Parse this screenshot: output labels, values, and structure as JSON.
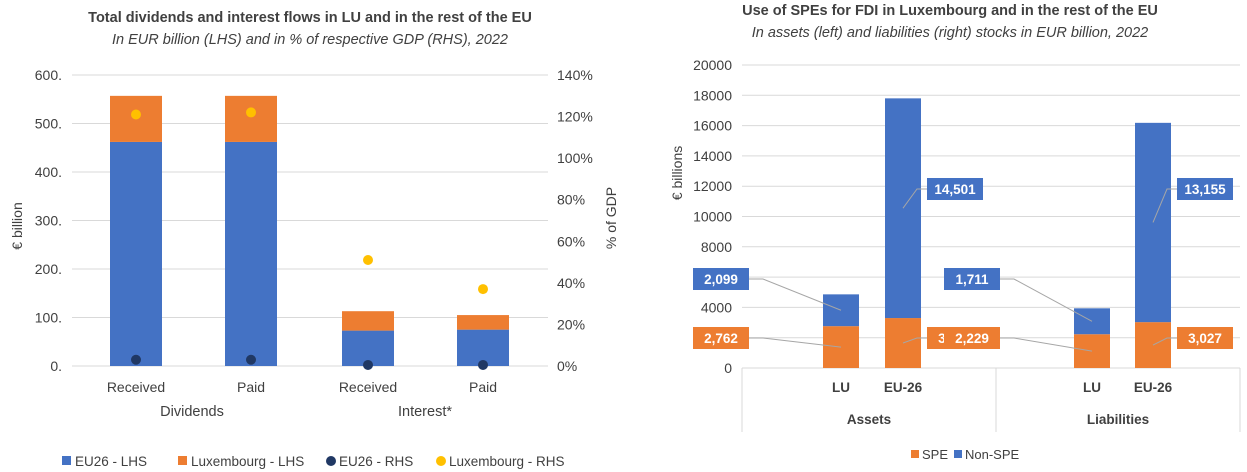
{
  "colors": {
    "blue": "#4472C4",
    "orange": "#ED7D31",
    "navy": "#203864",
    "gold": "#FFC000",
    "grid": "#D9D9D9",
    "text": "#404040",
    "title": "#404040"
  },
  "chart_data": [
    {
      "type": "bar",
      "stacked": true,
      "title": "Total dividends and interest flows in LU and in the rest of the EU",
      "subtitle": "In EUR billion (LHS) and in % of respective GDP (RHS), 2022",
      "ylabel": "€ billion",
      "y2label": "% of GDP",
      "ylim": [
        0,
        600
      ],
      "y2lim": [
        0,
        140
      ],
      "yticks": [
        "0.",
        "100.",
        "200.",
        "300.",
        "400.",
        "500.",
        "600."
      ],
      "y2ticks": [
        "0%",
        "20%",
        "40%",
        "60%",
        "80%",
        "100%",
        "120%",
        "140%"
      ],
      "categories": [
        "Received",
        "Paid",
        "Received",
        "Paid"
      ],
      "groups": [
        "Dividends",
        "Interest*"
      ],
      "grid": true,
      "legend_position": "bottom",
      "series": [
        {
          "name": "EU26 - LHS",
          "kind": "bar",
          "axis": "left",
          "color": "#4472C4",
          "values": [
            462,
            462,
            73,
            75
          ]
        },
        {
          "name": "Luxembourg - LHS",
          "kind": "bar",
          "axis": "left",
          "color": "#ED7D31",
          "values": [
            95,
            95,
            40,
            30
          ]
        },
        {
          "name": "EU26 - RHS",
          "kind": "marker",
          "axis": "right",
          "color": "#203864",
          "values": [
            3,
            3,
            0.5,
            0.5
          ]
        },
        {
          "name": "Luxembourg - RHS",
          "kind": "marker",
          "axis": "right",
          "color": "#FFC000",
          "values": [
            121,
            122,
            51,
            37
          ]
        }
      ]
    },
    {
      "type": "bar",
      "stacked": true,
      "title": "Use of SPEs for FDI in Luxembourg and in the rest of the EU",
      "subtitle": "In assets (left) and liabilities (right) stocks in EUR billion, 2022",
      "ylabel": "€ billions",
      "ylim": [
        0,
        20000
      ],
      "yticks": [
        "0",
        "2000",
        "4000",
        "6000",
        "8000",
        "10000",
        "12000",
        "14000",
        "16000",
        "18000",
        "20000"
      ],
      "categories": [
        "LU",
        "EU-26",
        "LU",
        "EU-26"
      ],
      "groups": [
        "Assets",
        "Liabilities"
      ],
      "grid": true,
      "legend_position": "bottom",
      "series": [
        {
          "name": "SPE",
          "color": "#ED7D31",
          "values": [
            2762,
            3297,
            2229,
            3027
          ],
          "labels": [
            "2,762",
            "3,297",
            "2,229",
            "3,027"
          ]
        },
        {
          "name": "Non-SPE",
          "color": "#4472C4",
          "values": [
            2099,
            14501,
            1711,
            13155
          ],
          "labels": [
            "2,099",
            "14,501",
            "1,711",
            "13,155"
          ]
        }
      ]
    }
  ]
}
